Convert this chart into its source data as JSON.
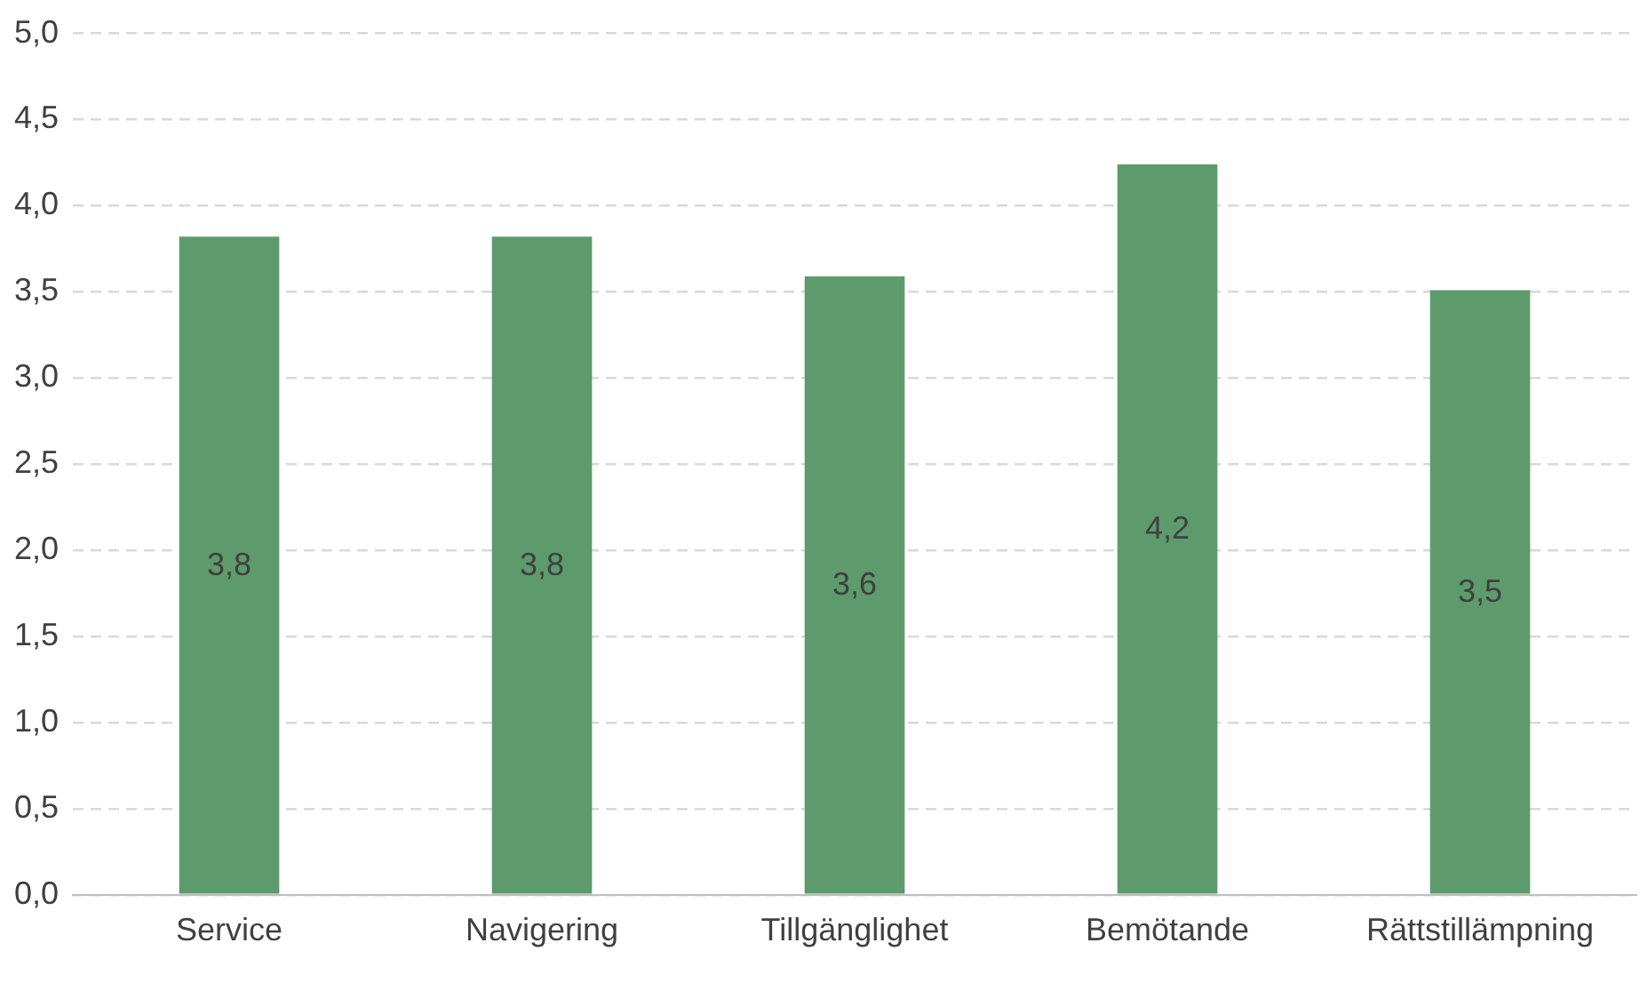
{
  "chart_data": {
    "type": "bar",
    "categories": [
      "Service",
      "Navigering",
      "Tillgänglighet",
      "Bemötande",
      "Rättstillämpning"
    ],
    "values": [
      3.82,
      3.82,
      3.59,
      4.24,
      3.51
    ],
    "value_labels": [
      "3,8",
      "3,8",
      "3,6",
      "4,2",
      "3,5"
    ],
    "color": "#5e9b6c",
    "ylim": [
      0,
      5
    ],
    "yticks": [
      {
        "value": 0,
        "label": "0,0"
      },
      {
        "value": 0.5,
        "label": "0,5"
      },
      {
        "value": 1,
        "label": "1,0"
      },
      {
        "value": 1.5,
        "label": "1,5"
      },
      {
        "value": 2,
        "label": "2,0"
      },
      {
        "value": 2.5,
        "label": "2,5"
      },
      {
        "value": 3,
        "label": "3,0"
      },
      {
        "value": 3.5,
        "label": "3,5"
      },
      {
        "value": 4,
        "label": "4,0"
      },
      {
        "value": 4.5,
        "label": "4,5"
      },
      {
        "value": 5,
        "label": "5,0"
      }
    ],
    "grid": "y",
    "legend": false
  }
}
